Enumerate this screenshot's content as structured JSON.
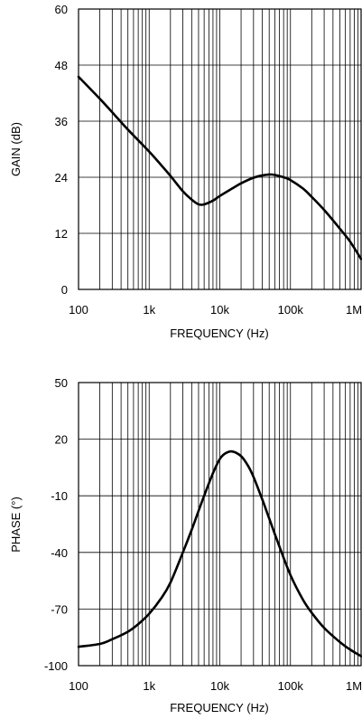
{
  "chart_data": [
    {
      "type": "line",
      "xlabel": "FREQUENCY (Hz)",
      "ylabel": "GAIN (dB)",
      "xscale": "log",
      "xlim": [
        100,
        1000000
      ],
      "ylim": [
        0,
        60
      ],
      "grid": true,
      "x_ticks": [
        {
          "value": 100,
          "label": "100"
        },
        {
          "value": 1000,
          "label": "1k"
        },
        {
          "value": 10000,
          "label": "10k"
        },
        {
          "value": 100000,
          "label": "100k"
        },
        {
          "value": 1000000,
          "label": "1M"
        }
      ],
      "y_ticks": [
        {
          "value": 0,
          "label": "0"
        },
        {
          "value": 12,
          "label": "12"
        },
        {
          "value": 24,
          "label": "24"
        },
        {
          "value": 36,
          "label": "36"
        },
        {
          "value": 48,
          "label": "48"
        },
        {
          "value": 60,
          "label": "60"
        }
      ],
      "series": [
        {
          "x": [
            100,
            200,
            300,
            500,
            1000,
            1500,
            2000,
            3000,
            4000,
            5000,
            6000,
            8000,
            10000,
            15000,
            20000,
            30000,
            40000,
            50000,
            60000,
            80000,
            100000,
            150000,
            200000,
            300000,
            500000,
            700000,
            1000000
          ],
          "y": [
            45.5,
            40.8,
            37.9,
            34.2,
            29.5,
            26.5,
            24.3,
            21.0,
            19.2,
            18.2,
            18.2,
            19.0,
            20.0,
            21.6,
            22.7,
            23.9,
            24.4,
            24.6,
            24.5,
            24.0,
            23.4,
            21.6,
            19.8,
            17.0,
            13.0,
            10.2,
            6.5
          ]
        }
      ]
    },
    {
      "type": "line",
      "xlabel": "FREQUENCY (Hz)",
      "ylabel": "PHASE (°)",
      "xscale": "log",
      "xlim": [
        100,
        1000000
      ],
      "ylim": [
        -100,
        50
      ],
      "grid": true,
      "x_ticks": [
        {
          "value": 100,
          "label": "100"
        },
        {
          "value": 1000,
          "label": "1k"
        },
        {
          "value": 10000,
          "label": "10k"
        },
        {
          "value": 100000,
          "label": "100k"
        },
        {
          "value": 1000000,
          "label": "1M"
        }
      ],
      "y_ticks": [
        {
          "value": -100,
          "label": "-100"
        },
        {
          "value": -70,
          "label": "-70"
        },
        {
          "value": -40,
          "label": "-40"
        },
        {
          "value": -10,
          "label": "-10"
        },
        {
          "value": 20,
          "label": "20"
        },
        {
          "value": 50,
          "label": "50"
        }
      ],
      "series": [
        {
          "x": [
            100,
            200,
            300,
            500,
            700,
            1000,
            1500,
            2000,
            3000,
            4000,
            5000,
            6000,
            8000,
            10000,
            12000,
            15000,
            20000,
            25000,
            30000,
            40000,
            50000,
            70000,
            100000,
            150000,
            200000,
            300000,
            500000,
            700000,
            1000000
          ],
          "y": [
            -90,
            -88.5,
            -86,
            -82,
            -78,
            -72.5,
            -64,
            -56,
            -40,
            -28,
            -18,
            -10,
            2,
            9.5,
            12.5,
            13.5,
            11,
            6,
            0,
            -12,
            -22,
            -37,
            -52,
            -65,
            -72,
            -80,
            -87.5,
            -91.5,
            -95
          ]
        }
      ]
    }
  ]
}
